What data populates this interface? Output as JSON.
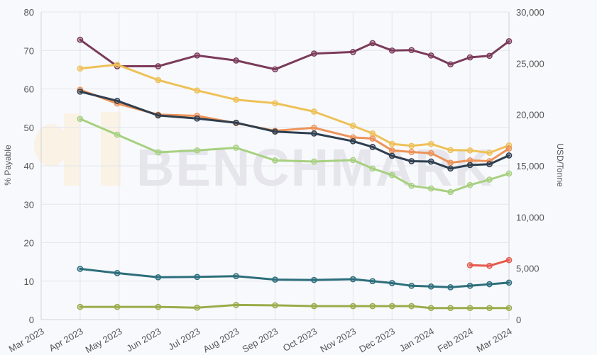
{
  "chart_data": {
    "type": "line",
    "watermark": "BENCHMARK",
    "y_left": {
      "label": "% Payable",
      "min": 0,
      "max": 80,
      "ticks": [
        "0",
        "10",
        "20",
        "30",
        "40",
        "50",
        "60",
        "70",
        "80"
      ]
    },
    "y_right": {
      "label": "USD/Tonne",
      "min": 0,
      "max": 30000,
      "ticks": [
        "0",
        "5,000",
        "10,000",
        "15,000",
        "20,000",
        "25,000",
        "30,000"
      ]
    },
    "categories": [
      "Mar 2023",
      "Apr 2023",
      "May 2023",
      "Jun 2023",
      "Jul 2023",
      "Aug 2023",
      "Sep 2023",
      "Oct 2023",
      "Nov 2023",
      "Dec 2023",
      "Jan 2024",
      "Feb 2024",
      "Mar 2024"
    ],
    "grid": true,
    "series": [
      {
        "color": "#7b3b5b",
        "axis": "left",
        "values": [
          [
            1.0,
            72.8
          ],
          [
            1.95,
            65.9
          ],
          [
            3.0,
            65.9
          ],
          [
            4.0,
            68.7
          ],
          [
            5.0,
            67.4
          ],
          [
            6.0,
            65.1
          ],
          [
            7.0,
            69.2
          ],
          [
            8.0,
            69.6
          ],
          [
            8.5,
            71.9
          ],
          [
            9.0,
            70.0
          ],
          [
            9.5,
            70.1
          ],
          [
            10.0,
            68.7
          ],
          [
            10.5,
            66.4
          ],
          [
            11.0,
            68.2
          ],
          [
            11.5,
            68.6
          ],
          [
            12.0,
            72.4
          ]
        ]
      },
      {
        "color": "#eec158",
        "axis": "left",
        "values": [
          [
            1.0,
            65.3
          ],
          [
            1.95,
            66.3
          ],
          [
            3.0,
            62.3
          ],
          [
            4.0,
            59.6
          ],
          [
            5.0,
            57.2
          ],
          [
            6.0,
            56.3
          ],
          [
            7.0,
            54.1
          ],
          [
            8.0,
            50.4
          ],
          [
            8.5,
            48.4
          ],
          [
            9.0,
            45.7
          ],
          [
            9.5,
            45.2
          ],
          [
            10.0,
            45.7
          ],
          [
            10.5,
            44.1
          ],
          [
            11.0,
            44.0
          ],
          [
            11.5,
            43.4
          ],
          [
            12.0,
            45.3
          ]
        ]
      },
      {
        "color": "#ed9358",
        "axis": "left",
        "values": [
          [
            1.0,
            59.8
          ],
          [
            1.95,
            56.2
          ],
          [
            3.0,
            53.3
          ],
          [
            4.0,
            53.0
          ],
          [
            5.0,
            51.1
          ],
          [
            6.0,
            49.1
          ],
          [
            7.0,
            49.9
          ],
          [
            8.0,
            47.4
          ],
          [
            8.5,
            47.1
          ],
          [
            9.0,
            44.0
          ],
          [
            9.5,
            43.6
          ],
          [
            10.0,
            43.3
          ],
          [
            10.5,
            40.8
          ],
          [
            11.0,
            41.4
          ],
          [
            11.5,
            41.2
          ],
          [
            12.0,
            44.5
          ]
        ]
      },
      {
        "color": "#2e3e4f",
        "axis": "left",
        "values": [
          [
            1.0,
            59.3
          ],
          [
            1.95,
            56.9
          ],
          [
            3.0,
            53.1
          ],
          [
            4.0,
            52.3
          ],
          [
            5.0,
            51.2
          ],
          [
            6.0,
            48.9
          ],
          [
            7.0,
            48.4
          ],
          [
            8.0,
            46.4
          ],
          [
            8.5,
            44.9
          ],
          [
            9.0,
            42.6
          ],
          [
            9.5,
            41.2
          ],
          [
            10.0,
            41.1
          ],
          [
            10.5,
            39.3
          ],
          [
            11.0,
            40.2
          ],
          [
            11.5,
            40.4
          ],
          [
            12.0,
            42.7
          ]
        ]
      },
      {
        "color": "#a7d080",
        "axis": "left",
        "values": [
          [
            1.0,
            52.2
          ],
          [
            1.95,
            48.1
          ],
          [
            3.0,
            43.5
          ],
          [
            4.0,
            44.0
          ],
          [
            5.0,
            44.7
          ],
          [
            6.0,
            41.4
          ],
          [
            7.0,
            41.1
          ],
          [
            8.0,
            41.5
          ],
          [
            8.5,
            39.3
          ],
          [
            9.0,
            37.6
          ],
          [
            9.5,
            34.8
          ],
          [
            10.0,
            34.1
          ],
          [
            10.5,
            33.2
          ],
          [
            11.0,
            35.0
          ],
          [
            11.5,
            36.4
          ],
          [
            12.0,
            38.0
          ]
        ]
      },
      {
        "color": "#e6594e",
        "axis": "right",
        "values": [
          [
            11.0,
            5300
          ],
          [
            11.5,
            5250
          ],
          [
            12.0,
            5800
          ]
        ]
      },
      {
        "color": "#2c6e7b",
        "axis": "left",
        "values": [
          [
            1.0,
            13.2
          ],
          [
            1.95,
            12.1
          ],
          [
            3.0,
            11.0
          ],
          [
            4.0,
            11.1
          ],
          [
            5.0,
            11.3
          ],
          [
            6.0,
            10.4
          ],
          [
            7.0,
            10.3
          ],
          [
            8.0,
            10.5
          ],
          [
            8.5,
            10.0
          ],
          [
            9.0,
            9.5
          ],
          [
            9.5,
            8.8
          ],
          [
            10.0,
            8.6
          ],
          [
            10.5,
            8.4
          ],
          [
            11.0,
            8.8
          ],
          [
            11.5,
            9.2
          ],
          [
            12.0,
            9.6
          ]
        ]
      },
      {
        "color": "#9bab4a",
        "axis": "left",
        "values": [
          [
            1.0,
            3.3
          ],
          [
            1.95,
            3.3
          ],
          [
            3.0,
            3.3
          ],
          [
            4.0,
            3.1
          ],
          [
            5.0,
            3.8
          ],
          [
            6.0,
            3.7
          ],
          [
            7.0,
            3.5
          ],
          [
            8.0,
            3.5
          ],
          [
            8.5,
            3.5
          ],
          [
            9.0,
            3.5
          ],
          [
            9.5,
            3.5
          ],
          [
            10.0,
            3.0
          ],
          [
            10.5,
            3.0
          ],
          [
            11.0,
            3.0
          ],
          [
            11.5,
            3.0
          ],
          [
            12.0,
            3.0
          ]
        ]
      }
    ]
  }
}
